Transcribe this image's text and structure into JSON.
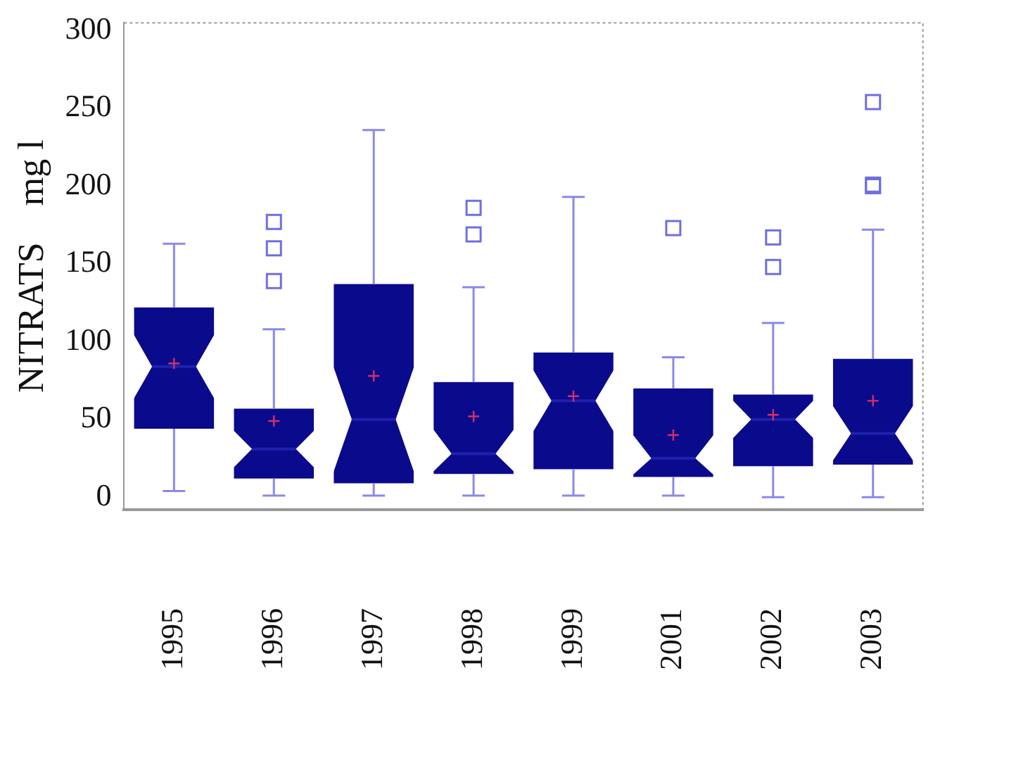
{
  "chart_data": {
    "type": "box",
    "ylabel": "NITRATS    mg l",
    "categories": [
      "1995",
      "1996",
      "1997",
      "1998",
      "1999",
      "2001",
      "2002",
      "2003"
    ],
    "color": "#0a0a8c",
    "grid": false,
    "legend": false,
    "ylim": [
      -8,
      305
    ],
    "yticks": [
      0,
      50,
      100,
      150,
      200,
      250,
      300
    ],
    "boxes": [
      {
        "low": 4,
        "q1": 44,
        "median": 84,
        "q3": 122,
        "high": 163,
        "mean": 86
      },
      {
        "low": 1,
        "q1": 12,
        "median": 31,
        "q3": 57,
        "high": 108,
        "mean": 49,
        "outliers": [
          139,
          160,
          177
        ]
      },
      {
        "low": 1,
        "q1": 9,
        "median": 50,
        "q3": 137,
        "high": 236,
        "mean": 78
      },
      {
        "low": 1,
        "q1": 15,
        "median": 28,
        "q3": 74,
        "high": 135,
        "mean": 52,
        "outliers": [
          169,
          186
        ]
      },
      {
        "low": 1,
        "q1": 18,
        "median": 62,
        "q3": 93,
        "high": 193,
        "mean": 65
      },
      {
        "low": 1,
        "q1": 13,
        "median": 25,
        "q3": 70,
        "high": 90,
        "mean": 40,
        "outliers": [
          173
        ]
      },
      {
        "low": 0,
        "q1": 20,
        "median": 50,
        "q3": 66,
        "high": 112,
        "mean": 53,
        "outliers": [
          148,
          167
        ]
      },
      {
        "low": 0,
        "q1": 21,
        "median": 41,
        "q3": 89,
        "high": 172,
        "mean": 62,
        "outliers": [
          200,
          201,
          254
        ]
      }
    ]
  }
}
